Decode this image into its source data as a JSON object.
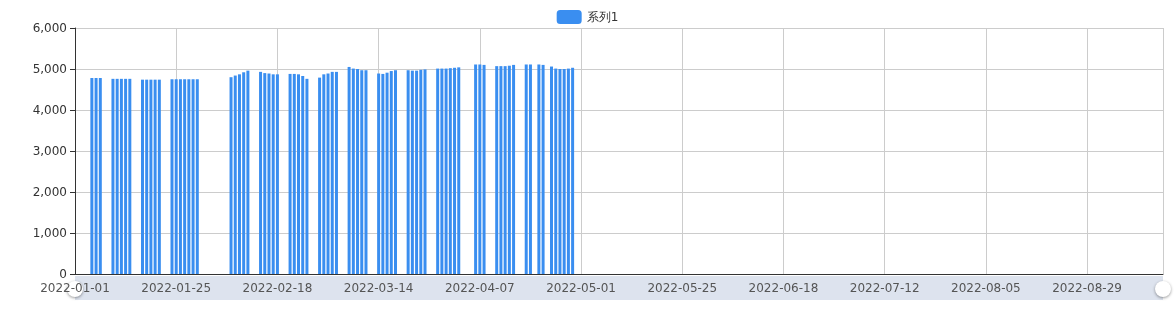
{
  "chart_data": {
    "type": "bar",
    "x": [
      "2022-01-05",
      "2022-01-06",
      "2022-01-07",
      "2022-01-10",
      "2022-01-11",
      "2022-01-12",
      "2022-01-13",
      "2022-01-14",
      "2022-01-17",
      "2022-01-18",
      "2022-01-19",
      "2022-01-20",
      "2022-01-21",
      "2022-01-24",
      "2022-01-25",
      "2022-01-26",
      "2022-01-27",
      "2022-01-28",
      "2022-01-29",
      "2022-01-30",
      "2022-02-07",
      "2022-02-08",
      "2022-02-09",
      "2022-02-10",
      "2022-02-11",
      "2022-02-14",
      "2022-02-15",
      "2022-02-16",
      "2022-02-17",
      "2022-02-18",
      "2022-02-21",
      "2022-02-22",
      "2022-02-23",
      "2022-02-24",
      "2022-02-25",
      "2022-02-28",
      "2022-03-01",
      "2022-03-02",
      "2022-03-03",
      "2022-03-04",
      "2022-03-07",
      "2022-03-08",
      "2022-03-09",
      "2022-03-10",
      "2022-03-11",
      "2022-03-14",
      "2022-03-15",
      "2022-03-16",
      "2022-03-17",
      "2022-03-18",
      "2022-03-21",
      "2022-03-22",
      "2022-03-23",
      "2022-03-24",
      "2022-03-25",
      "2022-03-28",
      "2022-03-29",
      "2022-03-30",
      "2022-03-31",
      "2022-04-01",
      "2022-04-02",
      "2022-04-06",
      "2022-04-07",
      "2022-04-08",
      "2022-04-11",
      "2022-04-12",
      "2022-04-13",
      "2022-04-14",
      "2022-04-15",
      "2022-04-18",
      "2022-04-19",
      "2022-04-21",
      "2022-04-22",
      "2022-04-24",
      "2022-04-25",
      "2022-04-26",
      "2022-04-27",
      "2022-04-28",
      "2022-04-29"
    ],
    "series": [
      {
        "name": "系列1",
        "color": "#3a8ef0",
        "values": [
          4780,
          4780,
          4780,
          4760,
          4760,
          4760,
          4760,
          4760,
          4740,
          4740,
          4740,
          4740,
          4740,
          4750,
          4750,
          4750,
          4750,
          4750,
          4750,
          4750,
          4800,
          4840,
          4870,
          4920,
          4960,
          4930,
          4900,
          4890,
          4870,
          4870,
          4880,
          4880,
          4870,
          4830,
          4760,
          4790,
          4870,
          4890,
          4930,
          4930,
          5050,
          5010,
          5000,
          4970,
          4970,
          4890,
          4880,
          4910,
          4950,
          4970,
          4970,
          4960,
          4960,
          4980,
          4990,
          5010,
          5010,
          5010,
          5020,
          5030,
          5040,
          5110,
          5110,
          5100,
          5070,
          5070,
          5070,
          5080,
          5100,
          5110,
          5110,
          5110,
          5100,
          5060,
          5010,
          5000,
          5000,
          5010,
          5030
        ]
      }
    ],
    "xlim": [
      "2022-01-01",
      "2022-09-16"
    ],
    "xticks": [
      "2022-01-01",
      "2022-01-25",
      "2022-02-18",
      "2022-03-14",
      "2022-04-07",
      "2022-05-01",
      "2022-05-25",
      "2022-06-18",
      "2022-07-12",
      "2022-08-05",
      "2022-08-29"
    ],
    "ylim": [
      0,
      6000
    ],
    "yticks": [
      0,
      {
        "value": 1000,
        "label": "1,000"
      },
      {
        "value": 2000,
        "label": "2,000"
      },
      {
        "value": 3000,
        "label": "3,000"
      },
      {
        "value": 4000,
        "label": "4,000"
      },
      {
        "value": 5000,
        "label": "5,000"
      },
      {
        "value": 6000,
        "label": "6,000"
      }
    ],
    "grid": true,
    "legend": "top"
  }
}
